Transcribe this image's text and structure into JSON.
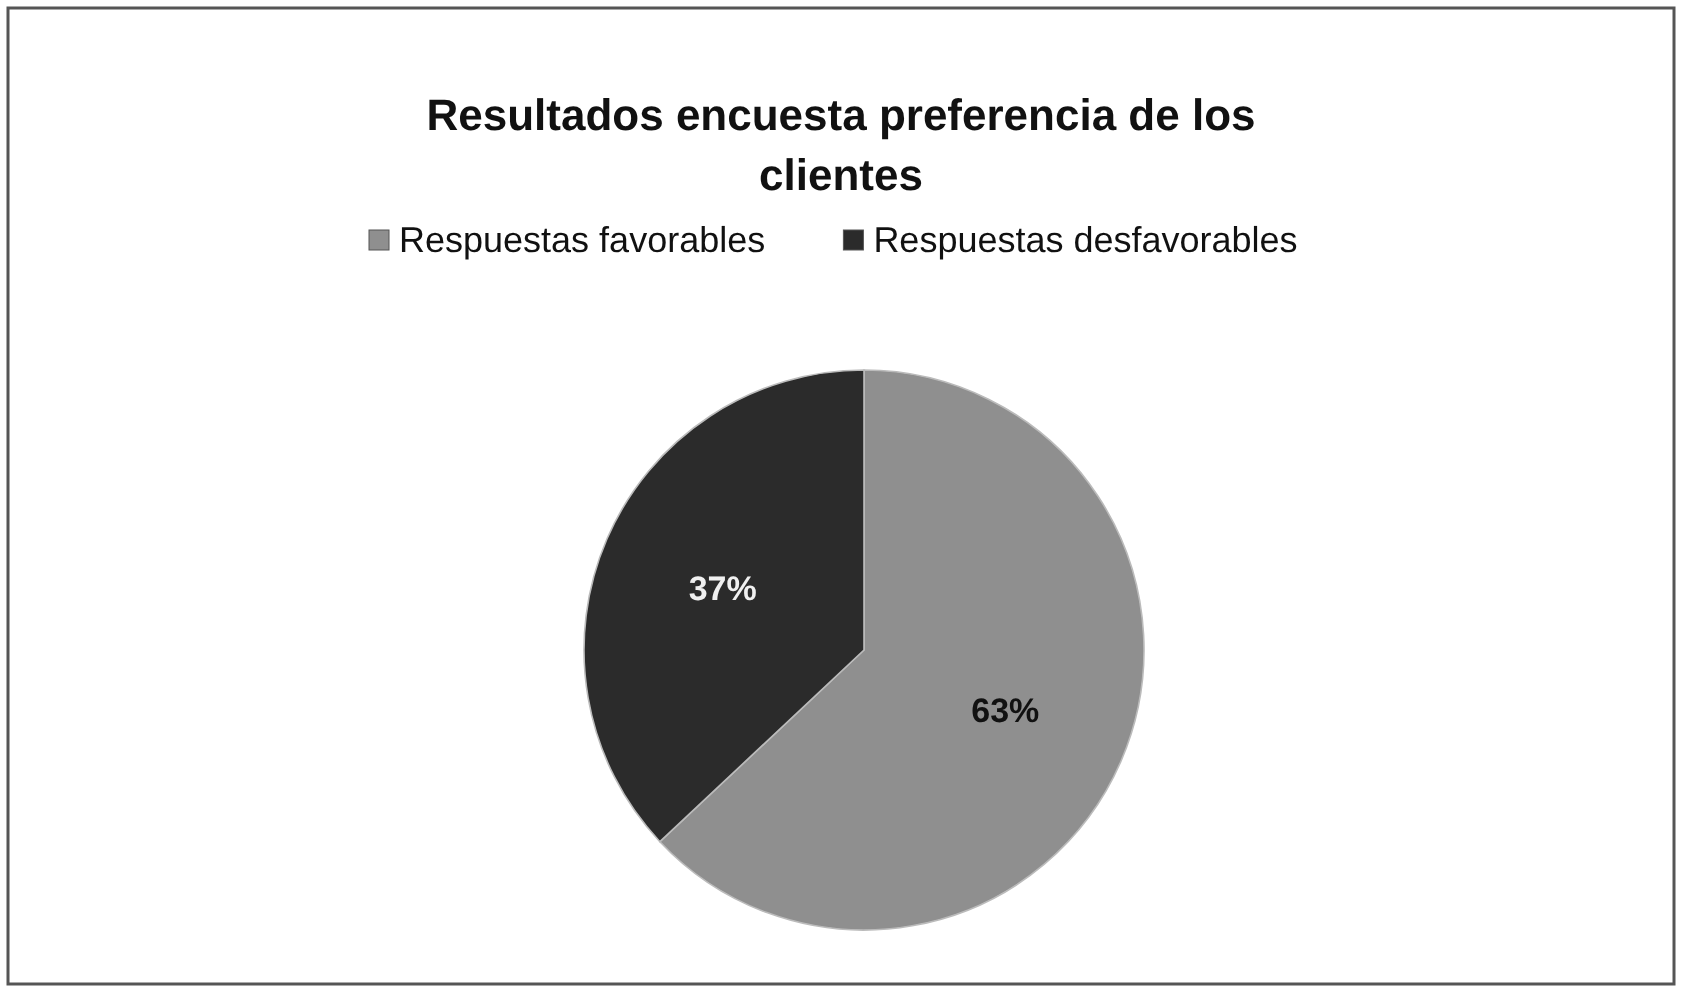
{
  "chart_data": {
    "type": "pie",
    "title": "Resultados encuesta preferencia de los clientes",
    "categories": [
      "Respuestas favorables",
      "Respuestas desfavorables"
    ],
    "values": [
      63,
      37
    ],
    "colors": [
      "#8f8f8f",
      "#2b2b2b"
    ],
    "value_labels": [
      "63%",
      "37%"
    ],
    "legend": "top"
  }
}
